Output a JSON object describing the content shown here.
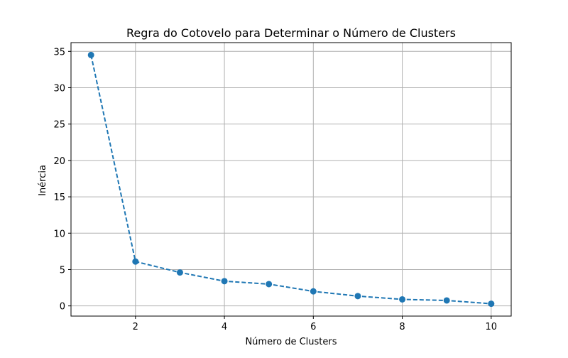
{
  "chart_data": {
    "type": "line",
    "title": "Regra do Cotovelo para Determinar o Número de Clusters",
    "xlabel": "Número de Clusters",
    "ylabel": "Inércia",
    "x": [
      1,
      2,
      3,
      4,
      5,
      6,
      7,
      8,
      9,
      10
    ],
    "series": [
      {
        "values": [
          34.5,
          6.1,
          4.6,
          3.4,
          3.0,
          2.0,
          1.35,
          0.9,
          0.75,
          0.3
        ],
        "color": "#1f77b4",
        "line_style": "dashed",
        "marker": "circle"
      }
    ],
    "xlim": [
      0.55,
      10.45
    ],
    "ylim": [
      -1.4,
      36.2
    ],
    "xticks": [
      2,
      4,
      6,
      8,
      10
    ],
    "yticks": [
      0,
      5,
      10,
      15,
      20,
      25,
      30,
      35
    ],
    "grid": true
  }
}
